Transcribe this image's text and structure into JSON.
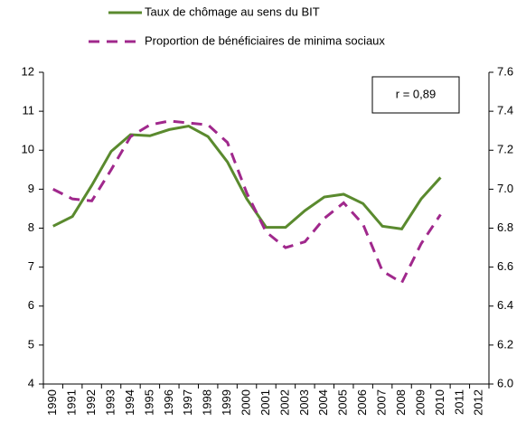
{
  "chart_data": {
    "type": "line",
    "categories": [
      "1990",
      "1991",
      "1992",
      "1993",
      "1994",
      "1995",
      "1996",
      "1997",
      "1998",
      "1999",
      "2000",
      "2001",
      "2002",
      "2003",
      "2004",
      "2005",
      "2006",
      "2007",
      "2008",
      "2009",
      "2010",
      "2011",
      "2012"
    ],
    "series": [
      {
        "name": "Taux de chômage au sens du BIT",
        "color": "#5a8a2e",
        "dash": false,
        "values": [
          8.05,
          8.3,
          9.1,
          9.97,
          10.4,
          10.37,
          10.53,
          10.62,
          10.35,
          9.7,
          8.75,
          8.02,
          8.02,
          8.45,
          8.8,
          8.87,
          8.63,
          8.05,
          7.98,
          8.75,
          9.3,
          null,
          null
        ]
      },
      {
        "name": "Proportion de bénéficiaires de minima sociaux",
        "color": "#a0288c",
        "dash": true,
        "axis": "y2",
        "values": [
          7.0,
          6.95,
          6.94,
          7.1,
          7.27,
          7.33,
          7.35,
          7.34,
          7.33,
          7.24,
          6.98,
          6.78,
          6.7,
          6.73,
          6.85,
          6.93,
          6.82,
          6.58,
          6.52,
          6.72,
          6.87,
          null,
          null
        ]
      }
    ],
    "ylim": [
      4,
      12
    ],
    "yticks": [
      4,
      5,
      6,
      7,
      8,
      9,
      10,
      11,
      12
    ],
    "y2lim": [
      6,
      7.6
    ],
    "y2ticks": [
      {
        "value": 6,
        "label": "6.0"
      },
      6.2,
      6.4,
      6.6,
      6.8,
      {
        "value": 7,
        "label": "7.0"
      },
      7.2,
      7.4,
      7.6
    ],
    "annotation": "r = 0,89"
  }
}
